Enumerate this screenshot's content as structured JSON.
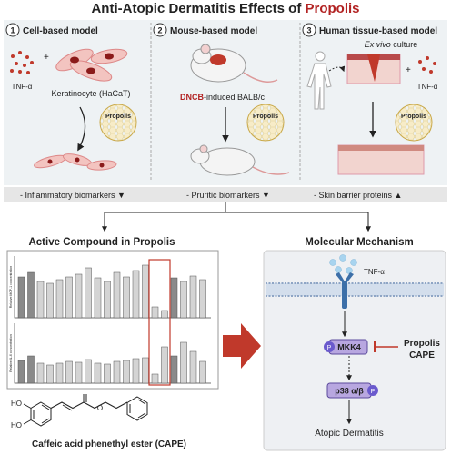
{
  "title": {
    "text": "Anti-Atopic Dermatitis Effects of",
    "highlight": "Propolis"
  },
  "models": [
    {
      "number": "1",
      "title": "Cell-based model",
      "stimulus": "TNF-α",
      "plus": "+",
      "cell": "Keratinocyte (HaCaT)",
      "treatment": "Propolis"
    },
    {
      "number": "2",
      "title": "Mouse-based model",
      "inducer": "DNCB",
      "animal": "-induced BALB/c",
      "treatment": "Propolis"
    },
    {
      "number": "3",
      "title": "Human tissue-based model",
      "culture_italic": "Ex vivo",
      "culture": "culture",
      "plus": "+",
      "stimulus": "TNF-α",
      "treatment": "Propolis"
    }
  ],
  "outcomes": [
    "-  Inflammatory biomarkers ▼",
    "-  Pruritic biomarkers ▼",
    "-  Skin barrier proteins ▲"
  ],
  "compound": {
    "title": "Active Compound in Propolis",
    "chart_labels": [
      "Relative MCP-1 concentration",
      "Relative IL-6 concentration"
    ],
    "atoms": [
      "HO",
      "HO",
      "O"
    ],
    "name": "Caffeic acid phenethyl ester (CAPE)"
  },
  "mechanism": {
    "title": "Molecular Mechanism",
    "ligand": "TNF-α",
    "phospho": "P",
    "kinase1": "MKK4",
    "inhibitor": [
      "Propolis",
      "CAPE"
    ],
    "kinase2": "p38 α/β",
    "outcome": "Atopic Dermatitis"
  }
}
